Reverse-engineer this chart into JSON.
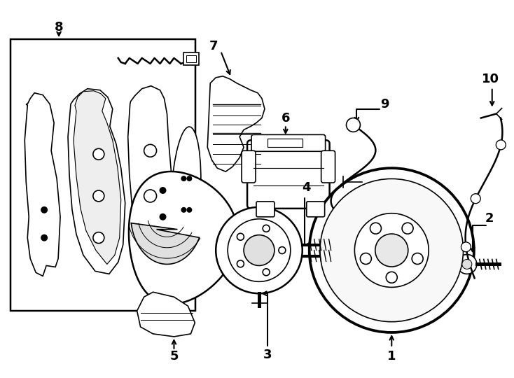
{
  "bg_color": "#ffffff",
  "line_color": "#000000",
  "line_width": 1.2,
  "fig_width": 7.34,
  "fig_height": 5.4
}
